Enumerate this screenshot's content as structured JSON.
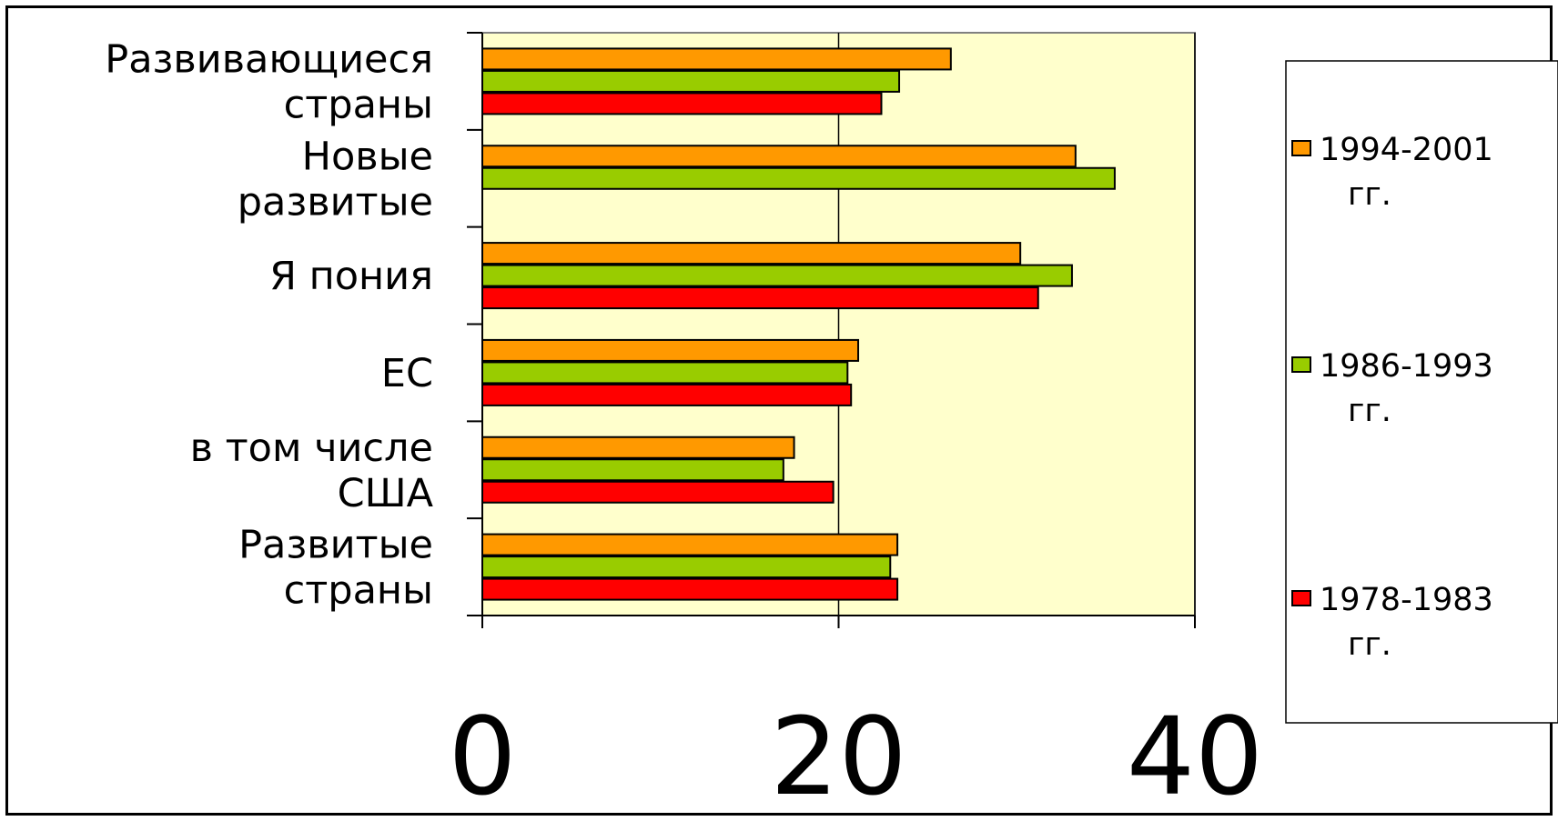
{
  "chart_data": {
    "type": "bar",
    "orientation": "horizontal",
    "title": "",
    "xlabel": "",
    "ylabel": "",
    "xlim": [
      0,
      40
    ],
    "grid": true,
    "legend_position": "right",
    "plot_background": "#FFFFCC",
    "categories": [
      [
        "Развивающиеся",
        "страны"
      ],
      [
        "Новые",
        "развитые"
      ],
      [
        "Я пония"
      ],
      [
        "ЕС"
      ],
      [
        "в том числе",
        "США"
      ],
      [
        "Развитые",
        "страны"
      ]
    ],
    "x_ticks": [
      "0",
      "20",
      "40"
    ],
    "series": [
      {
        "name": "1994-2001 гг.",
        "legend_lines": [
          "1994-2001",
          "гг."
        ],
        "color": "#FF9900",
        "values": [
          26.3,
          33.3,
          30.2,
          21.1,
          17.5,
          23.3
        ]
      },
      {
        "name": "1986-1993 гг.",
        "legend_lines": [
          "1986-1993",
          "гг."
        ],
        "color": "#99CC00",
        "values": [
          23.4,
          35.5,
          33.1,
          20.5,
          16.9,
          22.9
        ]
      },
      {
        "name": "1978-1983 гг.",
        "legend_lines": [
          "1978-1983",
          "гг."
        ],
        "color": "#FF0000",
        "values": [
          22.4,
          null,
          31.2,
          20.7,
          19.7,
          23.3
        ]
      }
    ]
  }
}
